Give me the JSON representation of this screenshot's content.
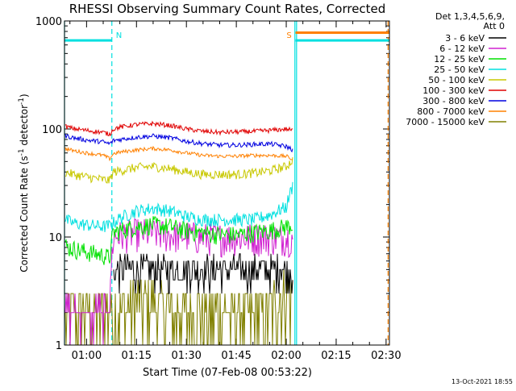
{
  "chart_data": {
    "type": "line",
    "title": "RHESSI Observing Summary Count Rates, Corrected",
    "xlabel": "Start Time (07-Feb-08 00:53:22)",
    "ylabel_parts": [
      "Corrected Count Rate (s",
      "-1",
      " detector",
      "-1",
      ")"
    ],
    "yscale": "log",
    "xlim_minutes": [
      53.37,
      151.0
    ],
    "ylim": [
      1,
      1000
    ],
    "x_ticks": [
      {
        "minute": 60,
        "label": "01:00"
      },
      {
        "minute": 75,
        "label": "01:15"
      },
      {
        "minute": 90,
        "label": "01:30"
      },
      {
        "minute": 105,
        "label": "01:45"
      },
      {
        "minute": 120,
        "label": "02:00"
      },
      {
        "minute": 135,
        "label": "02:15"
      },
      {
        "minute": 150,
        "label": "02:30"
      }
    ],
    "y_ticks": [
      {
        "value": 1,
        "label": "1"
      },
      {
        "value": 10,
        "label": "10"
      },
      {
        "value": 100,
        "label": "100"
      },
      {
        "value": 1000,
        "label": "1000"
      }
    ],
    "legend_header": [
      "Det 1,3,4,5,6,9,",
      "Att 0"
    ],
    "legend_placement": "right",
    "series": [
      {
        "name": "3 - 6 keV",
        "color": "#000000",
        "x": [
          53.4,
          60,
          66,
          68,
          70,
          75,
          80,
          85,
          90,
          95,
          100,
          105,
          110,
          115,
          120,
          122
        ],
        "values": [
          null,
          null,
          null,
          4.8,
          5,
          5,
          5,
          5,
          5,
          5,
          5,
          5,
          5,
          5,
          5,
          5
        ]
      },
      {
        "name": "6 - 12 keV",
        "color": "#d020d0",
        "x": [
          53.4,
          60,
          65,
          67,
          68,
          70,
          75,
          80,
          85,
          90,
          95,
          100,
          105,
          110,
          115,
          120,
          122
        ],
        "values": [
          2,
          2,
          2,
          2,
          10,
          10.5,
          11,
          11,
          10.5,
          10.5,
          10,
          10,
          10,
          10,
          10,
          10,
          10
        ]
      },
      {
        "name": "12 - 25 keV",
        "color": "#00e000",
        "x": [
          53.4,
          56,
          60,
          65,
          66,
          67,
          68,
          70,
          75,
          80,
          85,
          90,
          95,
          100,
          105,
          110,
          115,
          120,
          122
        ],
        "values": [
          8.3,
          7.8,
          7.3,
          6.8,
          6.6,
          6.5,
          11,
          11.5,
          12.5,
          13,
          12.5,
          11.5,
          11,
          10.5,
          10.5,
          11,
          11.5,
          12.5,
          13
        ]
      },
      {
        "name": "25 - 50 keV",
        "color": "#00e0e0",
        "x": [
          53.4,
          56,
          60,
          65,
          67,
          68,
          70,
          75,
          80,
          85,
          90,
          95,
          100,
          105,
          110,
          115,
          120,
          122
        ],
        "values": [
          14.5,
          13.5,
          13,
          12.5,
          12.8,
          13.5,
          15,
          17.5,
          18.5,
          17.5,
          15.5,
          14.5,
          14.5,
          14.5,
          14.5,
          16,
          19,
          30
        ]
      },
      {
        "name": "50 - 100 keV",
        "color": "#c8c800",
        "x": [
          53.4,
          56,
          60,
          65,
          66,
          67,
          68,
          70,
          75,
          80,
          85,
          90,
          95,
          100,
          105,
          110,
          115,
          120,
          122
        ],
        "values": [
          40,
          38,
          36,
          34,
          33.5,
          33.5,
          40,
          41,
          44,
          45,
          43,
          40,
          38,
          38,
          38,
          39,
          41,
          45,
          52
        ]
      },
      {
        "name": "100 - 300 keV",
        "color": "#e00000",
        "x": [
          53.4,
          56,
          60,
          65,
          66,
          67,
          68,
          70,
          75,
          80,
          85,
          90,
          95,
          100,
          105,
          110,
          115,
          120,
          122
        ],
        "values": [
          106,
          101,
          97,
          93,
          91,
          89,
          100,
          104,
          110,
          112,
          108,
          100,
          95,
          93,
          94,
          95,
          97,
          100,
          97
        ]
      },
      {
        "name": "300 - 800 keV",
        "color": "#0000e0",
        "x": [
          53.4,
          56,
          60,
          65,
          66,
          67,
          68,
          70,
          75,
          80,
          85,
          90,
          95,
          100,
          105,
          110,
          115,
          120,
          122
        ],
        "values": [
          87,
          83,
          79,
          76,
          74,
          73,
          78,
          80,
          84,
          86,
          83,
          77,
          73,
          71,
          71,
          72,
          73,
          69,
          64
        ]
      },
      {
        "name": "800 - 7000 keV",
        "color": "#ff8000",
        "x": [
          53.4,
          56,
          60,
          65,
          66,
          67,
          68,
          70,
          75,
          80,
          85,
          90,
          95,
          100,
          105,
          110,
          115,
          120,
          122
        ],
        "values": [
          66,
          63,
          60,
          57,
          55,
          53,
          59,
          61,
          64,
          66,
          64,
          60,
          57,
          56,
          56,
          57,
          57,
          56,
          52
        ]
      },
      {
        "name": "7000 - 15000 keV",
        "color": "#808000",
        "x": [
          53.4,
          60,
          68,
          70,
          75,
          80,
          85,
          90,
          95,
          100,
          105,
          110,
          115,
          120,
          122
        ],
        "values": [
          2,
          2,
          2,
          2.2,
          2.5,
          2.5,
          2,
          2,
          2,
          2,
          2,
          2,
          2.2,
          3,
          3
        ]
      }
    ],
    "attenuator_level": {
      "value": 660,
      "color": "#00e0e0",
      "segments_minutes": [
        [
          53.37,
          67.6
        ],
        [
          122.8,
          151.0
        ]
      ]
    },
    "shutter_level": {
      "value": 780,
      "color": "#ff8000",
      "segments_minutes": [
        [
          122.8,
          151.0
        ]
      ]
    },
    "gap_markers": [
      {
        "minute": 53.37,
        "style": "solid",
        "color": "#00e0e0"
      },
      {
        "minute": 67.6,
        "style": "dashed",
        "color": "#00e0e0",
        "label": "N"
      },
      {
        "minute": 122.6,
        "style": "solid",
        "color": "#00e0e0",
        "label": "S"
      },
      {
        "minute": 123.1,
        "style": "solid",
        "color": "#00e0e0"
      },
      {
        "minute": 150.6,
        "style": "dashed",
        "color": "#ff8000"
      }
    ],
    "label_color_N": "#00e0e0",
    "label_color_S": "#ff8000",
    "footer_text": "13-Oct-2021 18:55"
  }
}
